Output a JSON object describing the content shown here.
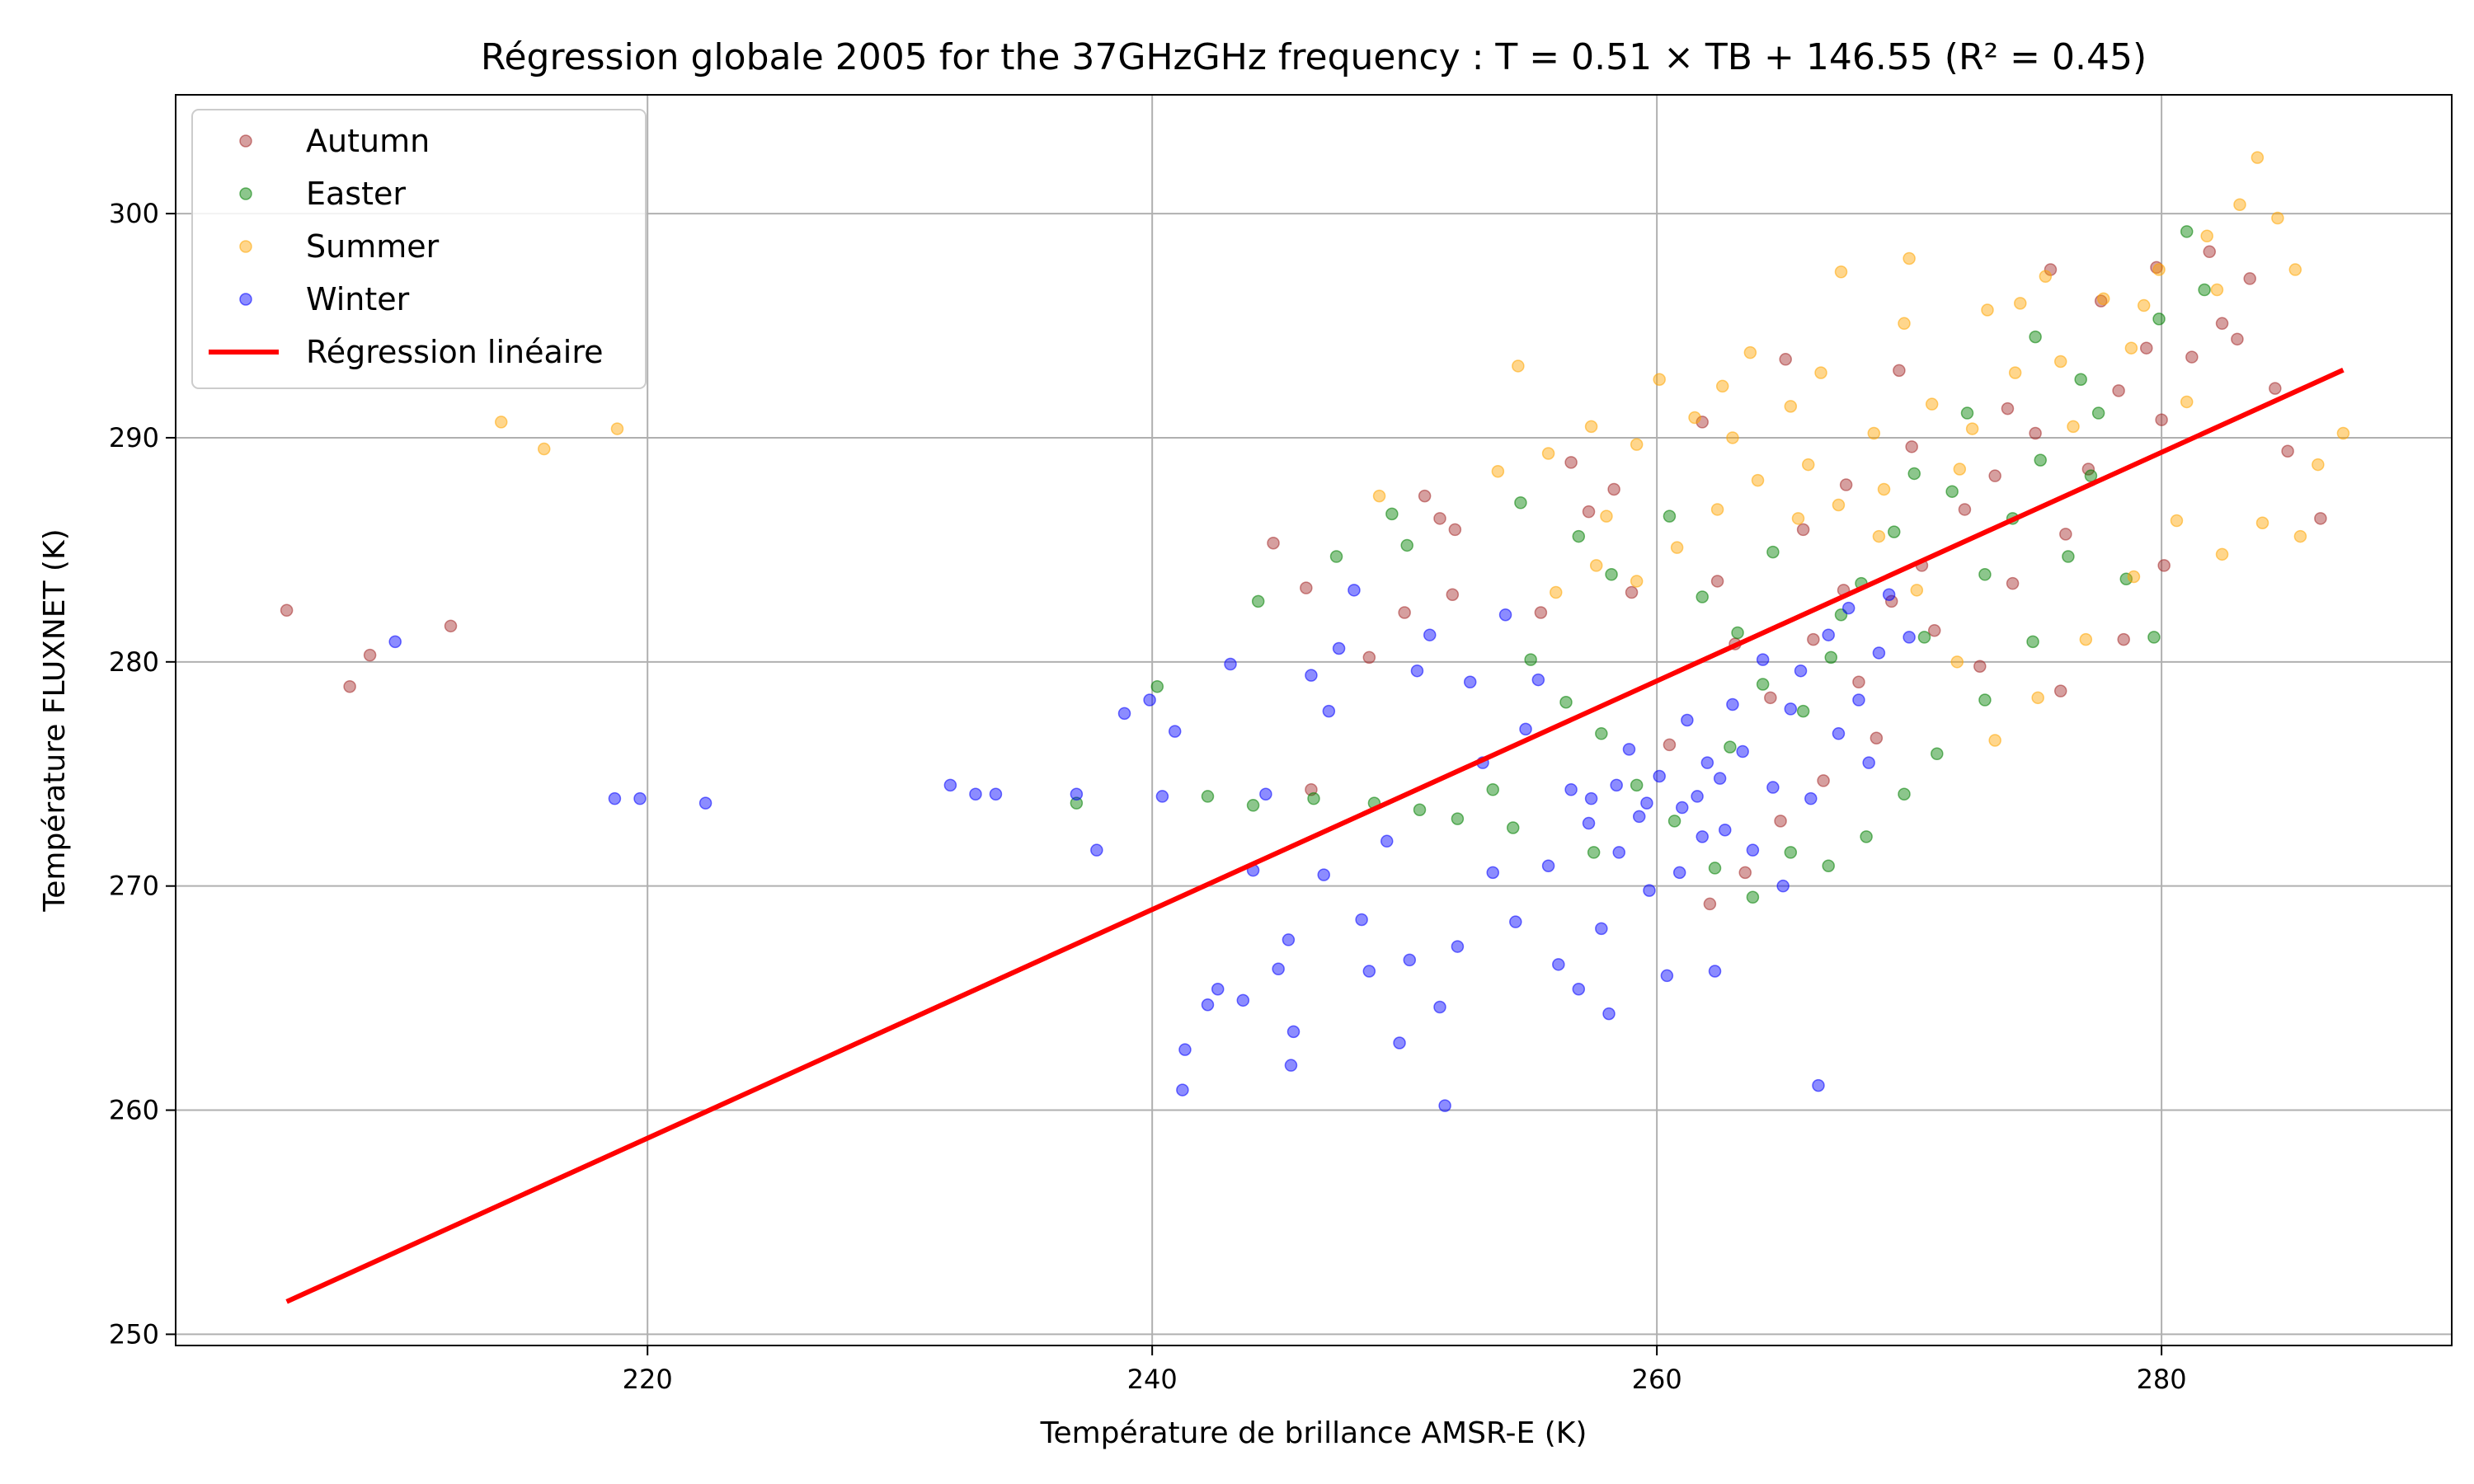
{
  "chart_data": {
    "type": "scatter",
    "title": "Régression globale 2005 for the 37GHzGHz frequency : T = 0.51 × TB + 146.55 (R² = 0.45)",
    "xlabel": "Température de brillance AMSR-E (K)",
    "ylabel": "Température FLUXNET (K)",
    "xlim": [
      201.3,
      291.5
    ],
    "ylim": [
      249.5,
      305.3
    ],
    "xticks": [
      220,
      240,
      260,
      280
    ],
    "yticks": [
      250,
      260,
      270,
      280,
      290,
      300
    ],
    "grid": true,
    "legend_position": "top-left",
    "regression": {
      "name": "Régression linéaire",
      "slope": 0.51,
      "intercept": 146.55,
      "r2": 0.45,
      "x_range": [
        205.7,
        287.2
      ],
      "color": "#ff0000"
    },
    "series": [
      {
        "name": "Autumn",
        "color": "#a52a2a",
        "points": [
          [
            205.7,
            282.3
          ],
          [
            208.2,
            278.9
          ],
          [
            209.0,
            280.3
          ],
          [
            212.2,
            281.6
          ],
          [
            246.1,
            283.3
          ],
          [
            244.8,
            285.3
          ],
          [
            250.8,
            287.4
          ],
          [
            251.4,
            286.4
          ],
          [
            252.0,
            285.9
          ],
          [
            250.0,
            282.2
          ],
          [
            258.3,
            287.7
          ],
          [
            262.4,
            283.6
          ],
          [
            263.1,
            280.8
          ],
          [
            264.5,
            278.4
          ],
          [
            265.8,
            285.9
          ],
          [
            266.2,
            281.0
          ],
          [
            267.4,
            283.2
          ],
          [
            268.0,
            279.1
          ],
          [
            269.3,
            282.7
          ],
          [
            270.5,
            284.3
          ],
          [
            271.0,
            281.4
          ],
          [
            272.2,
            286.8
          ],
          [
            273.4,
            288.3
          ],
          [
            274.1,
            283.5
          ],
          [
            275.0,
            290.2
          ],
          [
            276.2,
            285.7
          ],
          [
            277.1,
            288.6
          ],
          [
            278.3,
            292.1
          ],
          [
            279.4,
            294.0
          ],
          [
            280.0,
            290.8
          ],
          [
            281.2,
            293.6
          ],
          [
            282.4,
            295.1
          ],
          [
            283.0,
            294.4
          ],
          [
            284.5,
            292.2
          ],
          [
            285.0,
            289.4
          ],
          [
            286.3,
            286.4
          ],
          [
            280.1,
            284.3
          ],
          [
            278.5,
            281.0
          ],
          [
            276.0,
            278.7
          ],
          [
            272.8,
            279.8
          ],
          [
            268.7,
            276.6
          ],
          [
            266.6,
            274.7
          ],
          [
            264.9,
            272.9
          ],
          [
            263.5,
            270.6
          ],
          [
            262.1,
            269.2
          ],
          [
            260.5,
            276.3
          ],
          [
            259.0,
            283.1
          ],
          [
            257.3,
            286.7
          ],
          [
            256.6,
            288.9
          ],
          [
            261.8,
            290.7
          ],
          [
            265.1,
            293.5
          ],
          [
            267.5,
            287.9
          ],
          [
            270.1,
            289.6
          ],
          [
            273.9,
            291.3
          ],
          [
            277.6,
            296.1
          ],
          [
            279.8,
            297.6
          ],
          [
            281.9,
            298.3
          ],
          [
            283.5,
            297.1
          ],
          [
            275.6,
            297.5
          ],
          [
            269.6,
            293.0
          ],
          [
            246.3,
            274.3
          ],
          [
            248.6,
            280.2
          ],
          [
            251.9,
            283.0
          ],
          [
            255.4,
            282.2
          ]
        ]
      },
      {
        "name": "Easter",
        "color": "#008000",
        "points": [
          [
            237.0,
            273.7
          ],
          [
            240.2,
            278.9
          ],
          [
            244.2,
            282.7
          ],
          [
            247.3,
            284.7
          ],
          [
            249.5,
            286.6
          ],
          [
            250.1,
            285.2
          ],
          [
            254.6,
            287.1
          ],
          [
            256.9,
            285.6
          ],
          [
            258.2,
            283.9
          ],
          [
            260.5,
            286.5
          ],
          [
            261.8,
            282.9
          ],
          [
            263.2,
            281.3
          ],
          [
            264.6,
            284.9
          ],
          [
            265.8,
            277.8
          ],
          [
            266.9,
            280.2
          ],
          [
            268.1,
            283.5
          ],
          [
            269.4,
            285.8
          ],
          [
            270.6,
            281.1
          ],
          [
            271.7,
            287.6
          ],
          [
            273.0,
            283.9
          ],
          [
            274.1,
            286.4
          ],
          [
            275.2,
            289.0
          ],
          [
            276.3,
            284.7
          ],
          [
            277.5,
            291.1
          ],
          [
            278.6,
            283.7
          ],
          [
            279.7,
            281.1
          ],
          [
            281.0,
            299.2
          ],
          [
            281.7,
            296.6
          ],
          [
            279.9,
            295.3
          ],
          [
            277.2,
            288.3
          ],
          [
            274.9,
            280.9
          ],
          [
            273.0,
            278.3
          ],
          [
            271.1,
            275.9
          ],
          [
            269.8,
            274.1
          ],
          [
            268.3,
            272.2
          ],
          [
            266.8,
            270.9
          ],
          [
            265.3,
            271.5
          ],
          [
            263.8,
            269.5
          ],
          [
            262.3,
            270.8
          ],
          [
            260.7,
            272.9
          ],
          [
            259.2,
            274.5
          ],
          [
            257.8,
            276.8
          ],
          [
            256.4,
            278.2
          ],
          [
            255.0,
            280.1
          ],
          [
            253.5,
            274.3
          ],
          [
            252.1,
            273.0
          ],
          [
            250.6,
            273.4
          ],
          [
            248.8,
            273.7
          ],
          [
            246.4,
            273.9
          ],
          [
            244.0,
            273.6
          ],
          [
            242.2,
            274.0
          ],
          [
            254.3,
            272.6
          ],
          [
            257.5,
            271.5
          ],
          [
            262.9,
            276.2
          ],
          [
            264.2,
            279.0
          ],
          [
            267.3,
            282.1
          ],
          [
            270.2,
            288.4
          ],
          [
            272.3,
            291.1
          ],
          [
            275.0,
            294.5
          ],
          [
            276.8,
            292.6
          ]
        ]
      },
      {
        "name": "Summer",
        "color": "#ffa500",
        "points": [
          [
            214.2,
            290.7
          ],
          [
            215.9,
            289.5
          ],
          [
            218.8,
            290.4
          ],
          [
            249.0,
            287.4
          ],
          [
            253.7,
            288.5
          ],
          [
            254.5,
            293.2
          ],
          [
            255.7,
            289.3
          ],
          [
            257.4,
            290.5
          ],
          [
            259.2,
            289.7
          ],
          [
            260.1,
            292.6
          ],
          [
            261.5,
            290.9
          ],
          [
            262.6,
            292.3
          ],
          [
            263.7,
            293.8
          ],
          [
            265.3,
            291.4
          ],
          [
            266.5,
            292.9
          ],
          [
            267.3,
            297.4
          ],
          [
            268.6,
            290.2
          ],
          [
            269.8,
            295.1
          ],
          [
            270.9,
            291.5
          ],
          [
            272.0,
            288.6
          ],
          [
            273.1,
            295.7
          ],
          [
            274.2,
            292.9
          ],
          [
            275.4,
            297.2
          ],
          [
            276.5,
            290.5
          ],
          [
            277.7,
            296.2
          ],
          [
            278.8,
            294.0
          ],
          [
            279.9,
            297.5
          ],
          [
            281.0,
            291.6
          ],
          [
            282.2,
            296.6
          ],
          [
            283.1,
            300.4
          ],
          [
            283.8,
            302.5
          ],
          [
            284.6,
            299.8
          ],
          [
            285.3,
            297.5
          ],
          [
            286.2,
            288.8
          ],
          [
            287.2,
            290.2
          ],
          [
            285.5,
            285.6
          ],
          [
            284.0,
            286.2
          ],
          [
            282.4,
            284.8
          ],
          [
            280.6,
            286.3
          ],
          [
            278.9,
            283.8
          ],
          [
            277.0,
            281.0
          ],
          [
            275.1,
            278.4
          ],
          [
            273.4,
            276.5
          ],
          [
            271.9,
            280.0
          ],
          [
            270.3,
            283.2
          ],
          [
            268.8,
            285.6
          ],
          [
            267.2,
            287.0
          ],
          [
            265.6,
            286.4
          ],
          [
            264.0,
            288.1
          ],
          [
            262.4,
            286.8
          ],
          [
            260.8,
            285.1
          ],
          [
            259.2,
            283.6
          ],
          [
            257.6,
            284.3
          ],
          [
            256.0,
            283.1
          ],
          [
            258.0,
            286.5
          ],
          [
            263.0,
            290.0
          ],
          [
            266.0,
            288.8
          ],
          [
            269.0,
            287.7
          ],
          [
            272.5,
            290.4
          ],
          [
            276.0,
            293.4
          ],
          [
            279.3,
            295.9
          ],
          [
            281.8,
            299.0
          ],
          [
            274.4,
            296.0
          ],
          [
            270.0,
            298.0
          ]
        ]
      },
      {
        "name": "Winter",
        "color": "#0000ff",
        "points": [
          [
            210.0,
            280.9
          ],
          [
            218.7,
            273.9
          ],
          [
            219.7,
            273.9
          ],
          [
            222.3,
            273.7
          ],
          [
            232.0,
            274.5
          ],
          [
            233.0,
            274.1
          ],
          [
            233.8,
            274.1
          ],
          [
            237.0,
            274.1
          ],
          [
            237.8,
            271.6
          ],
          [
            238.9,
            277.7
          ],
          [
            239.9,
            278.3
          ],
          [
            240.4,
            274.0
          ],
          [
            240.9,
            276.9
          ],
          [
            241.2,
            260.9
          ],
          [
            241.3,
            262.7
          ],
          [
            242.2,
            264.7
          ],
          [
            242.6,
            265.4
          ],
          [
            243.1,
            279.9
          ],
          [
            243.6,
            264.9
          ],
          [
            244.0,
            270.7
          ],
          [
            244.5,
            274.1
          ],
          [
            245.0,
            266.3
          ],
          [
            245.4,
            267.6
          ],
          [
            245.6,
            263.5
          ],
          [
            245.5,
            262.0
          ],
          [
            246.3,
            279.4
          ],
          [
            246.8,
            270.5
          ],
          [
            247.0,
            277.8
          ],
          [
            247.4,
            280.6
          ],
          [
            248.0,
            283.2
          ],
          [
            248.3,
            268.5
          ],
          [
            248.6,
            266.2
          ],
          [
            249.3,
            272.0
          ],
          [
            249.8,
            263.0
          ],
          [
            250.2,
            266.7
          ],
          [
            250.5,
            279.6
          ],
          [
            251.0,
            281.2
          ],
          [
            251.4,
            264.6
          ],
          [
            251.6,
            260.2
          ],
          [
            252.1,
            267.3
          ],
          [
            252.6,
            279.1
          ],
          [
            253.1,
            275.5
          ],
          [
            253.5,
            270.6
          ],
          [
            254.0,
            282.1
          ],
          [
            254.4,
            268.4
          ],
          [
            254.8,
            277.0
          ],
          [
            255.3,
            279.2
          ],
          [
            255.7,
            270.9
          ],
          [
            256.1,
            266.5
          ],
          [
            256.6,
            274.3
          ],
          [
            256.9,
            265.4
          ],
          [
            257.3,
            272.8
          ],
          [
            257.8,
            268.1
          ],
          [
            258.1,
            264.3
          ],
          [
            258.5,
            271.5
          ],
          [
            258.9,
            276.1
          ],
          [
            259.3,
            273.1
          ],
          [
            259.7,
            269.8
          ],
          [
            260.1,
            274.9
          ],
          [
            260.4,
            266.0
          ],
          [
            260.9,
            270.6
          ],
          [
            261.2,
            277.4
          ],
          [
            261.6,
            274.0
          ],
          [
            262.0,
            275.5
          ],
          [
            262.3,
            266.2
          ],
          [
            262.7,
            272.5
          ],
          [
            263.0,
            278.1
          ],
          [
            263.4,
            276.0
          ],
          [
            263.8,
            271.6
          ],
          [
            264.2,
            280.1
          ],
          [
            264.6,
            274.4
          ],
          [
            265.0,
            270.0
          ],
          [
            265.3,
            277.9
          ],
          [
            265.7,
            279.6
          ],
          [
            266.1,
            273.9
          ],
          [
            266.4,
            261.1
          ],
          [
            266.8,
            281.2
          ],
          [
            267.2,
            276.8
          ],
          [
            267.6,
            282.4
          ],
          [
            268.0,
            278.3
          ],
          [
            268.4,
            275.5
          ],
          [
            268.8,
            280.4
          ],
          [
            269.2,
            283.0
          ],
          [
            270.0,
            281.1
          ],
          [
            261.0,
            273.5
          ],
          [
            261.8,
            272.2
          ],
          [
            262.5,
            274.8
          ],
          [
            259.6,
            273.7
          ],
          [
            258.4,
            274.5
          ],
          [
            257.4,
            273.9
          ]
        ]
      }
    ]
  }
}
